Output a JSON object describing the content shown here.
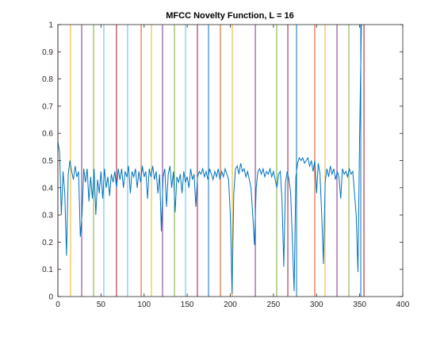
{
  "chart_data": {
    "type": "line",
    "title": "MFCC Novelty Function, L = 16",
    "xlim": [
      0,
      400
    ],
    "xticks": [
      0,
      50,
      100,
      150,
      200,
      250,
      300,
      350,
      400
    ],
    "ylim": [
      0,
      1
    ],
    "yticks": [
      0,
      0.1,
      0.2,
      0.3,
      0.4,
      0.5,
      0.6,
      0.7,
      0.8,
      0.9,
      1
    ],
    "box": true,
    "series": [
      {
        "color": "#0072bd",
        "x": [
          0,
          2,
          4,
          6,
          8,
          10,
          12,
          14,
          16,
          18,
          20,
          22,
          24,
          26,
          28,
          30,
          32,
          34,
          36,
          38,
          40,
          42,
          44,
          46,
          48,
          50,
          52,
          54,
          56,
          58,
          60,
          62,
          64,
          66,
          68,
          70,
          72,
          74,
          76,
          78,
          80,
          82,
          84,
          86,
          88,
          90,
          92,
          94,
          96,
          98,
          100,
          102,
          104,
          106,
          108,
          110,
          112,
          114,
          116,
          118,
          120,
          122,
          124,
          126,
          128,
          130,
          132,
          134,
          136,
          138,
          140,
          142,
          144,
          146,
          148,
          150,
          152,
          154,
          156,
          158,
          160,
          162,
          164,
          166,
          168,
          170,
          172,
          174,
          176,
          178,
          180,
          182,
          184,
          186,
          188,
          190,
          192,
          194,
          196,
          198,
          200,
          202,
          204,
          206,
          208,
          210,
          212,
          214,
          216,
          218,
          220,
          222,
          224,
          226,
          228,
          230,
          232,
          234,
          236,
          238,
          240,
          242,
          244,
          246,
          248,
          250,
          252,
          254,
          256,
          258,
          260,
          262,
          264,
          266,
          268,
          270,
          272,
          274,
          276,
          278,
          280,
          282,
          284,
          286,
          288,
          290,
          292,
          294,
          296,
          298,
          300,
          302,
          304,
          306,
          308,
          310,
          312,
          314,
          316,
          318,
          320,
          322,
          324,
          326,
          328,
          330,
          332,
          334,
          336,
          338,
          340,
          342,
          344,
          346,
          348,
          350,
          352
        ],
        "values": [
          0.57,
          0.53,
          0.3,
          0.46,
          0.38,
          0.15,
          0.45,
          0.5,
          0.46,
          0.43,
          0.48,
          0.44,
          0.46,
          0.22,
          0.3,
          0.47,
          0.42,
          0.47,
          0.35,
          0.44,
          0.36,
          0.47,
          0.3,
          0.43,
          0.38,
          0.46,
          0.36,
          0.47,
          0.4,
          0.44,
          0.37,
          0.45,
          0.42,
          0.46,
          0.4,
          0.47,
          0.43,
          0.47,
          0.4,
          0.46,
          0.44,
          0.48,
          0.38,
          0.46,
          0.44,
          0.47,
          0.4,
          0.46,
          0.42,
          0.48,
          0.44,
          0.46,
          0.36,
          0.47,
          0.44,
          0.48,
          0.43,
          0.46,
          0.38,
          0.45,
          0.24,
          0.44,
          0.47,
          0.33,
          0.45,
          0.48,
          0.4,
          0.46,
          0.31,
          0.44,
          0.42,
          0.45,
          0.38,
          0.46,
          0.42,
          0.44,
          0.4,
          0.47,
          0.43,
          0.45,
          0.33,
          0.44,
          0.46,
          0.45,
          0.47,
          0.44,
          0.46,
          0.43,
          0.47,
          0.45,
          0.43,
          0.46,
          0.44,
          0.47,
          0.43,
          0.46,
          0.44,
          0.47,
          0.45,
          0.43,
          0.3,
          0.01,
          0.38,
          0.47,
          0.48,
          0.45,
          0.49,
          0.46,
          0.47,
          0.44,
          0.46,
          0.43,
          0.4,
          0.3,
          0.19,
          0.4,
          0.46,
          0.47,
          0.45,
          0.47,
          0.44,
          0.46,
          0.45,
          0.47,
          0.44,
          0.46,
          0.43,
          0.4,
          0.45,
          0.46,
          0.35,
          0.11,
          0.42,
          0.46,
          0.43,
          0.38,
          0.2,
          0.02,
          0.44,
          0.49,
          0.51,
          0.5,
          0.51,
          0.49,
          0.5,
          0.51,
          0.48,
          0.5,
          0.46,
          0.5,
          0.38,
          0.49,
          0.45,
          0.3,
          0.12,
          0.42,
          0.47,
          0.44,
          0.48,
          0.45,
          0.47,
          0.43,
          0.46,
          0.44,
          0.36,
          0.47,
          0.45,
          0.46,
          0.44,
          0.47,
          0.45,
          0.46,
          0.38,
          0.3,
          0.09,
          0.6,
          1.0
        ]
      }
    ],
    "boundaries": [
      0,
      14.7,
      27.6,
      41.4,
      53.3,
      68,
      80.9,
      96.6,
      108.5,
      121.4,
      135.2,
      148,
      161.8,
      174.7,
      188.5,
      202.3,
      229,
      253.8,
      266.7,
      276.8,
      297.9,
      309.9,
      323.7,
      337.5,
      351.3,
      355
    ],
    "boundary_colors": [
      "#d95319",
      "#edb120",
      "#7e2f8e",
      "#77ac30",
      "#4dbeee",
      "#a2142f",
      "#4dbeee",
      "#d95319",
      "#edb120",
      "#7e2f8e",
      "#77ac30",
      "#4dbeee",
      "#a2142f",
      "#0072bd",
      "#d95319",
      "#edb120",
      "#7e2f8e",
      "#77ac30",
      "#a2142f",
      "#0072bd",
      "#d95319",
      "#edb120",
      "#7e2f8e",
      "#77ac30",
      "#0072bd",
      "#a2142f"
    ]
  }
}
